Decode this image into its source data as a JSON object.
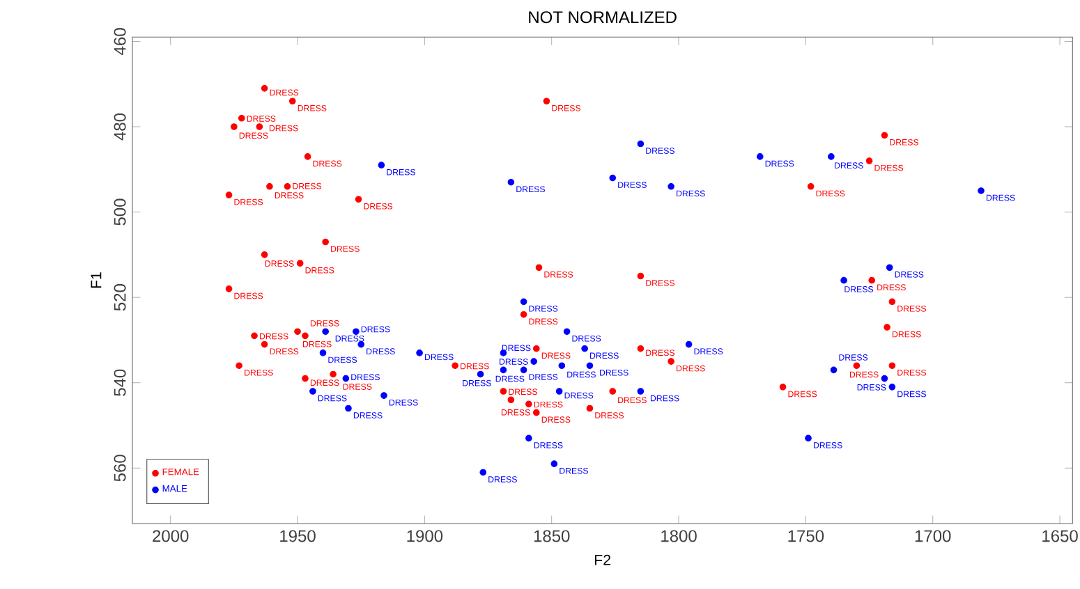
{
  "chart_data": {
    "type": "scatter",
    "title": "NOT NORMALIZED",
    "xlabel": "F2",
    "ylabel": "F1",
    "xlim": [
      2015,
      1645
    ],
    "ylim": [
      573,
      459
    ],
    "xticks": [
      2000,
      1950,
      1900,
      1850,
      1800,
      1750,
      1700,
      1650
    ],
    "yticks": [
      460,
      480,
      500,
      520,
      540,
      560
    ],
    "legend": "bottom left",
    "marker": "circle",
    "series": [
      {
        "name": "FEMALE",
        "color": "#ff0000",
        "x": [
          1963,
          1952,
          1975,
          1972,
          1965,
          1946,
          1961,
          1954,
          1977,
          1926,
          1939,
          1963,
          1949,
          1852,
          1855,
          1977,
          1967,
          1963,
          1950,
          1947,
          1973,
          1947,
          1936,
          1888,
          1856,
          1861,
          1869,
          1866,
          1859,
          1856,
          1835,
          1815,
          1719,
          1725,
          1748,
          1724,
          1716,
          1718,
          1803,
          1815,
          1730,
          1716,
          1759,
          1826
        ],
        "values": [
          471,
          474,
          480,
          478,
          480,
          487,
          494,
          494,
          496,
          497,
          507,
          510,
          512,
          474,
          513,
          518,
          529,
          531,
          528,
          529,
          536,
          539,
          538,
          536,
          532,
          524,
          542,
          544,
          545,
          547,
          546,
          515,
          482,
          488,
          494,
          516,
          521,
          527,
          535,
          532,
          536,
          536,
          541,
          542
        ],
        "value_labels": [
          "DRESS",
          "DRESS",
          "DRESS",
          "DRESS",
          "DRESS",
          "DRESS",
          "DRESS",
          "DRESS",
          "DRESS",
          "DRESS",
          "DRESS",
          "DRESS",
          "DRESS",
          "DRESS",
          "DRESS",
          "DRESS",
          "DRESS",
          "DRESS",
          "DRESS",
          "DRESS",
          "DRESS",
          "DRESS",
          "DRESS",
          "DRESS",
          "DRESS",
          "DRESS",
          "DRESS",
          "DRESS",
          "DRESS",
          "DRESS",
          "DRESS",
          "DRESS",
          "DRESS",
          "DRESS",
          "DRESS",
          "DRESS",
          "DRESS",
          "DRESS",
          "DRESS",
          "DRESS",
          "DRESS",
          "DRESS",
          "DRESS",
          "DRESS"
        ]
      },
      {
        "name": "MALE",
        "color": "#0000ff",
        "x": [
          1917,
          1866,
          1815,
          1826,
          1803,
          1768,
          1740,
          1681,
          1717,
          1735,
          1861,
          1939,
          1927,
          1925,
          1940,
          1902,
          1869,
          1844,
          1837,
          1861,
          1857,
          1846,
          1869,
          1878,
          1931,
          1944,
          1916,
          1930,
          1847,
          1859,
          1849,
          1877,
          1835,
          1796,
          1815,
          1739,
          1719,
          1716,
          1749
        ],
        "values": [
          489,
          493,
          484,
          492,
          494,
          487,
          487,
          495,
          513,
          516,
          521,
          528,
          528,
          531,
          533,
          533,
          533,
          528,
          532,
          537,
          535,
          536,
          537,
          538,
          539,
          542,
          543,
          546,
          542,
          553,
          559,
          561,
          536,
          531,
          542,
          537,
          539,
          541,
          553
        ],
        "value_labels": [
          "DRESS",
          "DRESS",
          "DRESS",
          "DRESS",
          "DRESS",
          "DRESS",
          "DRESS",
          "DRESS",
          "DRESS",
          "DRESS",
          "DRESS",
          "DRESS",
          "DRESS",
          "DRESS",
          "DRESS",
          "DRESS",
          "DRESS",
          "DRESS",
          "DRESS",
          "DRESS",
          "DRESS",
          "DRESS",
          "DRESS",
          "DRESS",
          "DRESS",
          "DRESS",
          "DRESS",
          "DRESS",
          "DRESS",
          "DRESS",
          "DRESS",
          "DRESS",
          "DRESS",
          "DRESS",
          "DRESS",
          "DRESS",
          "DRESS",
          "DRESS",
          "DRESS"
        ]
      }
    ]
  }
}
